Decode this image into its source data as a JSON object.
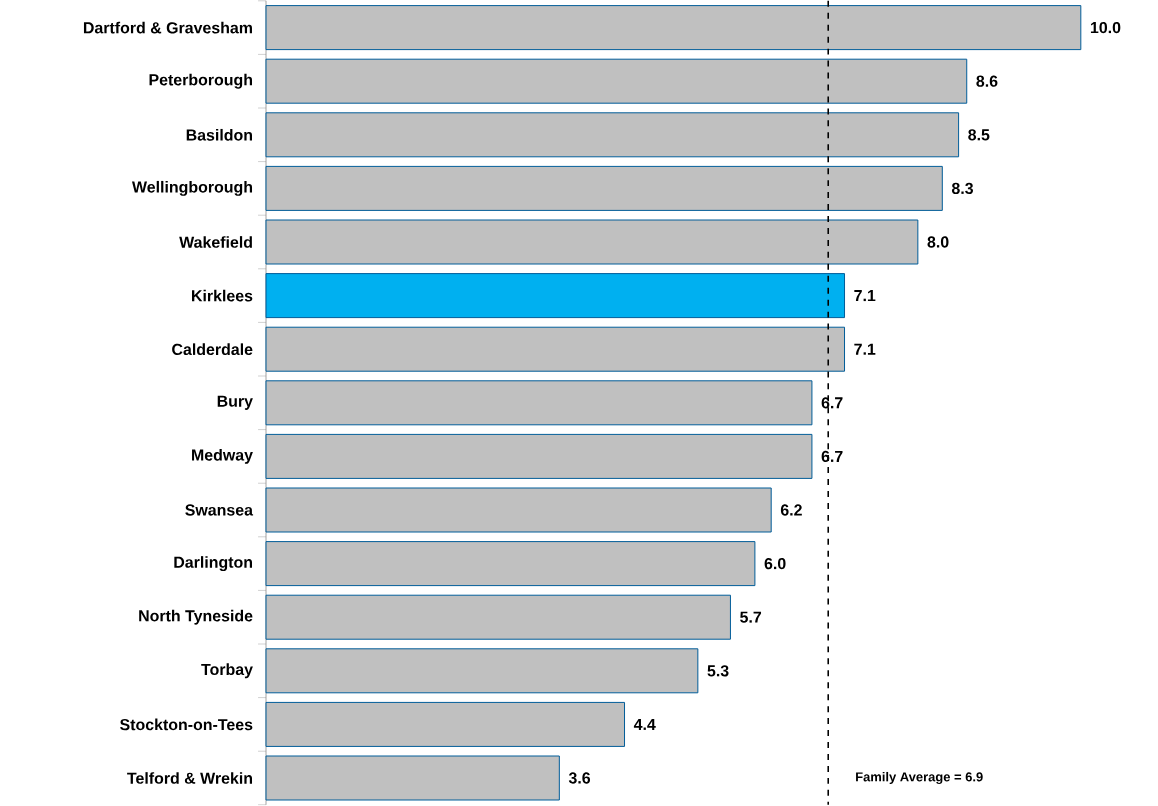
{
  "chart_data": {
    "type": "bar",
    "orientation": "horizontal",
    "categories": [
      "Dartford & Gravesham",
      "Peterborough",
      "Basildon",
      "Wellingborough",
      "Wakefield",
      "Kirklees",
      "Calderdale",
      "Bury",
      "Medway",
      "Swansea",
      "Darlington",
      "North Tyneside",
      "Torbay",
      "Stockton-on-Tees",
      "Telford & Wrekin"
    ],
    "values": [
      10.0,
      8.6,
      8.5,
      8.3,
      8.0,
      7.1,
      7.1,
      6.7,
      6.7,
      6.2,
      6.0,
      5.7,
      5.3,
      4.4,
      3.6
    ],
    "colors": [
      "#c0c0c0",
      "#c0c0c0",
      "#c0c0c0",
      "#c0c0c0",
      "#c0c0c0",
      "#00b0f0",
      "#c0c0c0",
      "#c0c0c0",
      "#c0c0c0",
      "#c0c0c0",
      "#c0c0c0",
      "#c0c0c0",
      "#c0c0c0",
      "#c0c0c0",
      "#c0c0c0"
    ],
    "value_labels": [
      "10.0",
      "8.6",
      "8.5",
      "8.3",
      "8.0",
      "7.1",
      "7.1",
      "6.7",
      "6.7",
      "6.2",
      "6.0",
      "5.7",
      "5.3",
      "4.4",
      "3.6"
    ],
    "tick_labels": "y",
    "ref_lines": [
      {
        "axis": "x",
        "value": 6.9,
        "label": "Family Average = 6.9",
        "color": "#000000",
        "line_style": "dashed"
      }
    ]
  }
}
